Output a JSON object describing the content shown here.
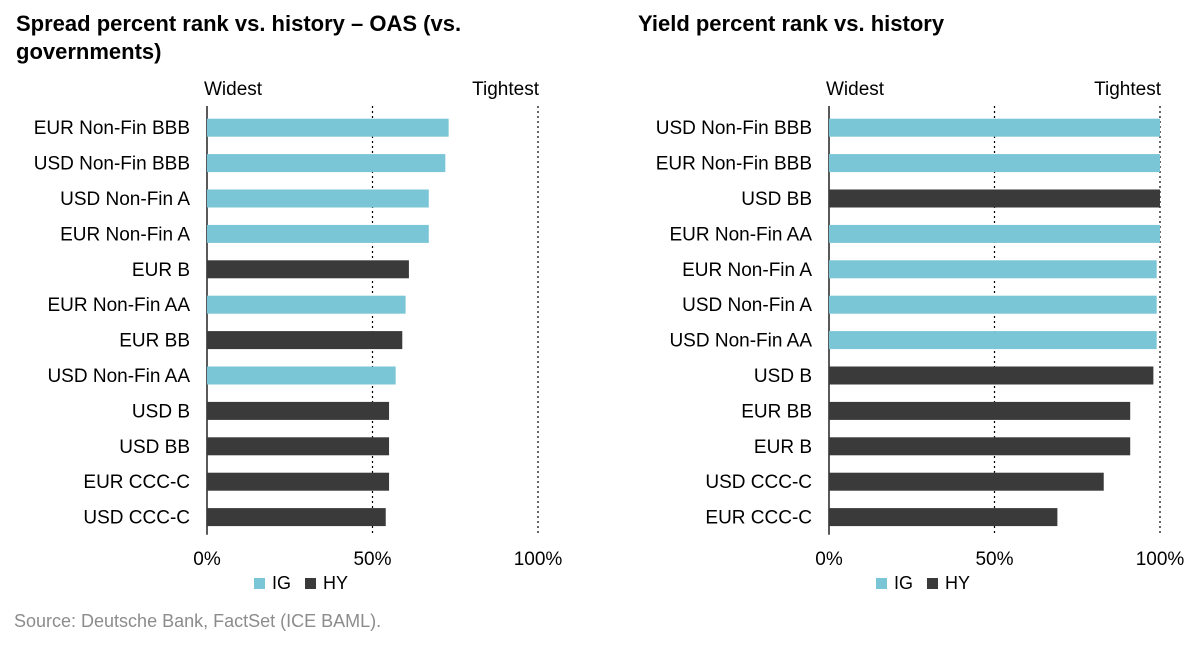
{
  "colors": {
    "IG": "#7ac5d6",
    "HY": "#3a3a3a"
  },
  "source": "Source: Deutsche Bank, FactSet (ICE BAML).",
  "chart_data": [
    {
      "type": "bar",
      "orientation": "horizontal",
      "title": "Spread percent rank vs. history – OAS (vs. governments)",
      "left_label": "Widest",
      "right_label": "Tightest",
      "xticks": [
        "0%",
        "50%",
        "100%"
      ],
      "xlim": [
        0,
        100
      ],
      "grid": "dotted vertical at 50% and 100%",
      "legend": [
        {
          "name": "IG",
          "color": "#7ac5d6"
        },
        {
          "name": "HY",
          "color": "#3a3a3a"
        }
      ],
      "legend_position": "bottom",
      "categories": [
        "EUR Non-Fin BBB",
        "USD Non-Fin BBB",
        "USD Non-Fin A",
        "EUR Non-Fin A",
        "EUR B",
        "EUR Non-Fin AA",
        "EUR BB",
        "USD Non-Fin AA",
        "USD B",
        "USD BB",
        "EUR CCC-C",
        "USD CCC-C"
      ],
      "groups": [
        "IG",
        "IG",
        "IG",
        "IG",
        "HY",
        "IG",
        "HY",
        "IG",
        "HY",
        "HY",
        "HY",
        "HY"
      ],
      "values": [
        73,
        72,
        67,
        67,
        61,
        60,
        59,
        57,
        55,
        55,
        55,
        54
      ]
    },
    {
      "type": "bar",
      "orientation": "horizontal",
      "title": "Yield percent rank vs. history",
      "left_label": "Widest",
      "right_label": "Tightest",
      "xticks": [
        "0%",
        "50%",
        "100%"
      ],
      "xlim": [
        0,
        100
      ],
      "grid": "dotted vertical at 50% and 100%",
      "legend": [
        {
          "name": "IG",
          "color": "#7ac5d6"
        },
        {
          "name": "HY",
          "color": "#3a3a3a"
        }
      ],
      "legend_position": "bottom",
      "categories": [
        "USD Non-Fin BBB",
        "EUR Non-Fin BBB",
        "USD BB",
        "EUR Non-Fin AA",
        "EUR Non-Fin A",
        "USD Non-Fin A",
        "USD Non-Fin AA",
        "USD B",
        "EUR BB",
        "EUR B",
        "USD CCC-C",
        "EUR CCC-C"
      ],
      "groups": [
        "IG",
        "IG",
        "HY",
        "IG",
        "IG",
        "IG",
        "IG",
        "HY",
        "HY",
        "HY",
        "HY",
        "HY"
      ],
      "values": [
        100,
        100,
        100,
        100,
        99,
        99,
        99,
        98,
        91,
        91,
        83,
        69
      ]
    }
  ]
}
